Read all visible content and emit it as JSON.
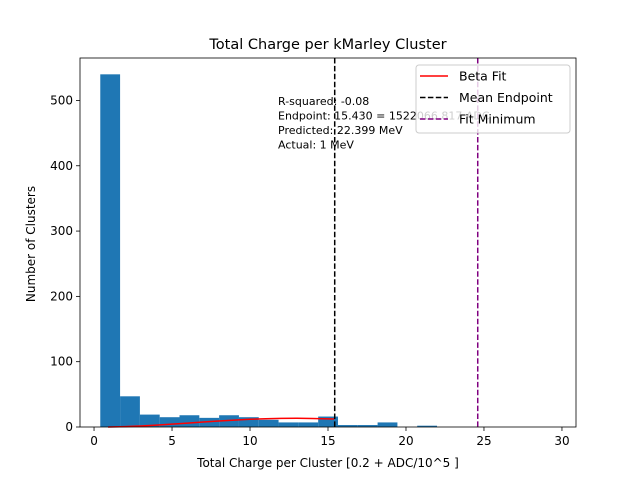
{
  "chart_data": {
    "type": "bar",
    "title": "Total Charge per kMarley Cluster",
    "xlabel": "Total Charge per Cluster [0.2 + ADC/10^5 ]",
    "ylabel": "Number of Clusters",
    "xlim": [
      -0.9,
      30.9
    ],
    "ylim": [
      0,
      565
    ],
    "x_ticks": [
      0,
      5,
      10,
      15,
      20,
      25,
      30
    ],
    "y_ticks": [
      0,
      100,
      200,
      300,
      400,
      500
    ],
    "grid": false,
    "legend_position": "top-right",
    "histogram": {
      "color": "#1f77b4",
      "bins": [
        {
          "x0": 0.4,
          "x1": 1.67,
          "count": 540
        },
        {
          "x0": 1.67,
          "x2": 0,
          "x1": 2.94,
          "count": 47
        },
        {
          "x0": 2.94,
          "x1": 4.21,
          "count": 19
        },
        {
          "x0": 4.21,
          "x1": 5.48,
          "count": 15
        },
        {
          "x0": 5.48,
          "x1": 6.75,
          "count": 18
        },
        {
          "x0": 6.75,
          "x1": 8.02,
          "count": 14
        },
        {
          "x0": 8.02,
          "x1": 9.29,
          "count": 18
        },
        {
          "x0": 9.29,
          "x1": 10.56,
          "count": 15
        },
        {
          "x0": 10.56,
          "x1": 11.83,
          "count": 11
        },
        {
          "x0": 11.83,
          "x1": 13.1,
          "count": 7
        },
        {
          "x0": 13.1,
          "x1": 14.37,
          "count": 7
        },
        {
          "x0": 14.37,
          "x1": 15.64,
          "count": 16
        },
        {
          "x0": 15.64,
          "x1": 16.91,
          "count": 3
        },
        {
          "x0": 16.91,
          "x1": 18.18,
          "count": 3
        },
        {
          "x0": 18.18,
          "x1": 19.45,
          "count": 7
        },
        {
          "x0": 19.45,
          "x1": 20.72,
          "count": 0
        },
        {
          "x0": 20.72,
          "x1": 21.99,
          "count": 2
        }
      ]
    },
    "series": [
      {
        "name": "Beta Fit",
        "color": "#ff0000",
        "style": "solid",
        "x": [
          0.9,
          2,
          3,
          4,
          5,
          6,
          7,
          8,
          9,
          10,
          11,
          12,
          13,
          14,
          15,
          15.4
        ],
        "y": [
          0,
          0.6,
          1.6,
          2.9,
          4.4,
          6.0,
          7.6,
          9.2,
          10.6,
          11.8,
          12.6,
          13.2,
          13.4,
          13.1,
          12.5,
          12.2
        ]
      }
    ],
    "vlines": [
      {
        "name": "Mean Endpoint",
        "x": 15.43,
        "color": "#000000",
        "style": "dashed"
      },
      {
        "name": "Fit Minimum",
        "x": 24.6,
        "color": "#800080",
        "style": "dashed"
      }
    ],
    "annotations": [
      "R-squared: -0.08",
      "Endpoint: 15.430 = 1522066.817 ADC",
      "Predicted: 22.399 MeV",
      "Actual: 1 MeV"
    ]
  }
}
